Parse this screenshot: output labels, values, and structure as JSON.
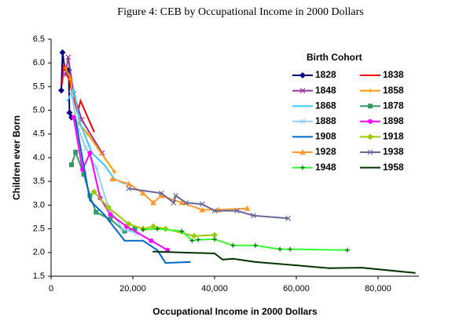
{
  "chart_data": {
    "type": "line",
    "title": "Figure 4: CEB by Occupational Income in 2000 Dollars",
    "x_label": "Occupational Income in 2000 Dollars",
    "y_label": "Children ever Born",
    "legend_title": "Birth Cohort",
    "xlim": [
      0,
      90000
    ],
    "ylim": [
      1.5,
      6.5
    ],
    "xticks": [
      0,
      {
        "value": 20000,
        "label": "20,000"
      },
      {
        "value": 40000,
        "label": "40,000"
      },
      {
        "value": 60000,
        "label": "60,000"
      },
      {
        "value": 80000,
        "label": "80,000"
      }
    ],
    "yticks": [
      1.5,
      {
        "value": 2,
        "label": "2.0"
      },
      2.5,
      {
        "value": 3,
        "label": "3.0"
      },
      3.5,
      {
        "value": 4,
        "label": "4.0"
      },
      4.5,
      {
        "value": 5,
        "label": "5.0"
      },
      5.5,
      {
        "value": 6,
        "label": "6.0"
      },
      6.5
    ],
    "series": [
      {
        "name": "1828",
        "color": "#000080",
        "marker": "diamond",
        "x": [
          2500,
          2800,
          3300,
          4300,
          4500,
          5000
        ],
        "values": [
          5.42,
          6.22,
          5.9,
          5.85,
          4.95,
          4.85
        ]
      },
      {
        "name": "1838",
        "color": "#ff0000",
        "marker": "none",
        "x": [
          2700,
          3100,
          4200,
          6500,
          7200,
          10500
        ],
        "values": [
          5.55,
          5.95,
          5.7,
          4.95,
          5.2,
          4.55
        ]
      },
      {
        "name": "1848",
        "color": "#993399",
        "marker": "x",
        "x": [
          3500,
          4200,
          5500,
          7500,
          12500
        ],
        "values": [
          5.75,
          6.12,
          5.35,
          4.8,
          4.1
        ]
      },
      {
        "name": "1858",
        "color": "#ff9900",
        "marker": "plus",
        "x": [
          3500,
          4800,
          6000,
          9000,
          15500
        ],
        "values": [
          5.9,
          5.65,
          4.8,
          4.5,
          3.7
        ]
      },
      {
        "name": "1868",
        "color": "#33ccff",
        "marker": "none",
        "x": [
          4000,
          5500,
          7000,
          10000,
          13000,
          15500,
          18000
        ],
        "values": [
          5.2,
          5.45,
          4.75,
          4.1,
          3.85,
          3.55,
          3.45
        ]
      },
      {
        "name": "1878",
        "color": "#339966",
        "marker": "square",
        "x": [
          5000,
          6000,
          8000,
          9500,
          11000,
          14500,
          18000,
          20500
        ],
        "values": [
          3.85,
          4.12,
          3.65,
          3.2,
          2.85,
          2.7,
          2.45,
          2.5
        ]
      },
      {
        "name": "1888",
        "color": "#99ccff",
        "marker": "x",
        "x": [
          5000,
          6500,
          8500,
          11000,
          14000,
          17500,
          21000
        ],
        "values": [
          5.35,
          4.65,
          4.2,
          3.8,
          2.95,
          2.5,
          2.4
        ]
      },
      {
        "name": "1898",
        "color": "#ff00ff",
        "marker": "circle",
        "x": [
          5500,
          7700,
          9500,
          12000,
          14500,
          18500,
          24500,
          28500
        ],
        "values": [
          4.85,
          3.75,
          4.1,
          3.15,
          2.8,
          2.55,
          2.25,
          2.05
        ]
      },
      {
        "name": "1908",
        "color": "#0066cc",
        "marker": "none",
        "x": [
          6000,
          9500,
          13000,
          18000,
          22500,
          26000,
          28000,
          34000
        ],
        "values": [
          4.8,
          3.1,
          2.8,
          2.25,
          2.25,
          2.05,
          1.78,
          1.8
        ]
      },
      {
        "name": "1918",
        "color": "#99cc00",
        "marker": "diamond",
        "x": [
          10500,
          14000,
          19000,
          22500,
          25000,
          28000,
          35000,
          40000
        ],
        "values": [
          3.28,
          2.95,
          2.6,
          2.5,
          2.55,
          2.5,
          2.35,
          2.37
        ]
      },
      {
        "name": "1928",
        "color": "#ff9933",
        "marker": "triangle",
        "x": [
          15000,
          19000,
          22500,
          25000,
          27000,
          32000,
          37000,
          41000,
          48000
        ],
        "values": [
          3.55,
          3.45,
          3.25,
          3.05,
          3.2,
          3.05,
          2.9,
          2.9,
          2.93
        ]
      },
      {
        "name": "1938",
        "color": "#666699",
        "marker": "x",
        "x": [
          19000,
          27000,
          30000,
          30500,
          33000,
          37000,
          40000,
          45500,
          49500,
          58000
        ],
        "values": [
          3.35,
          3.25,
          3.05,
          3.2,
          3.05,
          3.02,
          2.88,
          2.88,
          2.78,
          2.72
        ]
      },
      {
        "name": "1948",
        "color": "#33ff33",
        "marker": "plus",
        "x": [
          22500,
          26000,
          32000,
          34500,
          36000,
          40000,
          44500,
          50000,
          56000,
          58500,
          72500
        ],
        "values": [
          2.48,
          2.5,
          2.45,
          2.25,
          2.27,
          2.28,
          2.15,
          2.15,
          2.07,
          2.07,
          2.05
        ]
      },
      {
        "name": "1958",
        "color": "#003300",
        "marker": "none",
        "x": [
          25000,
          40000,
          42000,
          44500,
          50000,
          60000,
          68000,
          76000,
          89000
        ],
        "values": [
          2.02,
          1.98,
          1.85,
          1.87,
          1.8,
          1.73,
          1.67,
          1.68,
          1.57
        ]
      }
    ],
    "legend": "upper-right",
    "grid": false
  }
}
